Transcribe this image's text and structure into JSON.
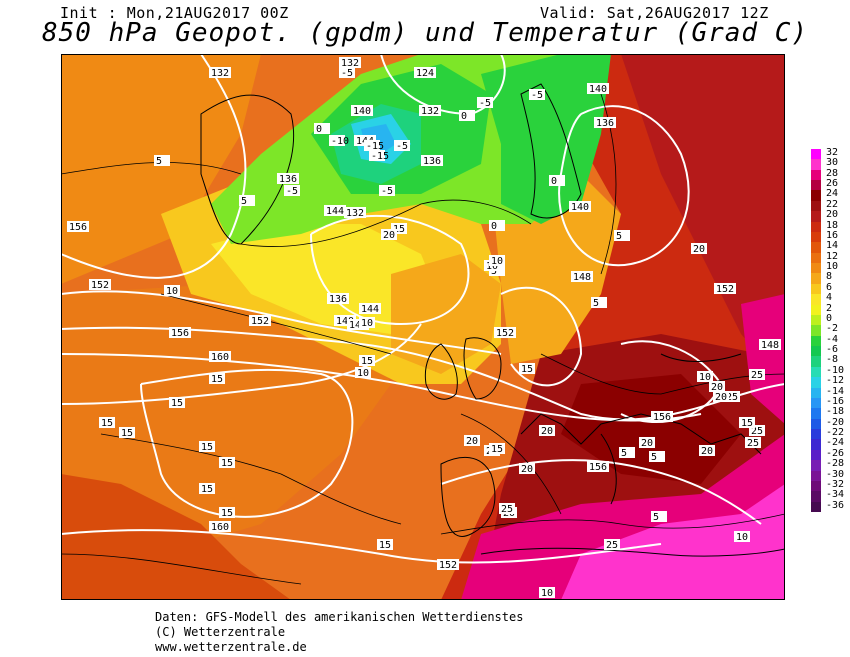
{
  "header": {
    "init": "Init : Mon,21AUG2017 00Z",
    "valid": "Valid: Sat,26AUG2017 12Z",
    "title": "850 hPa Geopot. (gpdm) und Temperatur (Grad C)"
  },
  "legend": {
    "labels": [
      "32",
      "30",
      "28",
      "26",
      "24",
      "22",
      "20",
      "18",
      "16",
      "14",
      "12",
      "10",
      "8",
      "6",
      "4",
      "2",
      "0",
      "-2",
      "-4",
      "-6",
      "-8",
      "-10",
      "-12",
      "-14",
      "-16",
      "-18",
      "-20",
      "-22",
      "-24",
      "-26",
      "-28",
      "-30",
      "-32",
      "-34",
      "-36"
    ],
    "colors": [
      "#ff00ff",
      "#ff33cc",
      "#e6007a",
      "#b30040",
      "#8b0000",
      "#9e1010",
      "#b51a1a",
      "#cc2a10",
      "#d83c0a",
      "#e2570a",
      "#ea7010",
      "#f08a14",
      "#f5a81a",
      "#f8c81e",
      "#fae628",
      "#f2f21e",
      "#bdf01e",
      "#7de628",
      "#2ad23c",
      "#14c850",
      "#1ed27d",
      "#28dcb4",
      "#2ad2e6",
      "#28b4f0",
      "#2896f5",
      "#1e78f0",
      "#1e5ae6",
      "#2a3cdc",
      "#3c28d2",
      "#5a1ec8",
      "#781eb4",
      "#7a1496",
      "#6e0a78",
      "#5a0a64",
      "#460a50"
    ]
  },
  "geopotential_labels": [
    "132",
    "132",
    "124",
    "132",
    "140",
    "144",
    "136",
    "144",
    "140",
    "136",
    "136",
    "132",
    "156",
    "152",
    "140",
    "136",
    "144",
    "148",
    "152",
    "148",
    "152",
    "140",
    "156",
    "152",
    "160",
    "156",
    "156",
    "160",
    "148",
    "152"
  ],
  "temperature_labels": [
    "-5",
    "-5",
    "-10",
    "-15",
    "-15",
    "-5",
    "-5",
    "-5",
    "-5",
    "0",
    "0",
    "0",
    "0",
    "5",
    "5",
    "5",
    "5",
    "10",
    "10",
    "10",
    "10",
    "15",
    "15",
    "15",
    "15",
    "15",
    "15",
    "15",
    "15",
    "15",
    "15",
    "20",
    "20",
    "20",
    "20",
    "20",
    "20",
    "20",
    "25",
    "25",
    "25",
    "25",
    "25",
    "10",
    "10",
    "15",
    "15",
    "20",
    "10",
    "5",
    "5",
    "5",
    "5",
    "10",
    "15",
    "20",
    "20",
    "15",
    "25",
    "20"
  ],
  "footer": {
    "line1": "Daten: GFS-Modell des amerikanischen Wetterdienstes",
    "line2": "(C) Wetterzentrale",
    "line3": "www.wetterzentrale.de"
  }
}
